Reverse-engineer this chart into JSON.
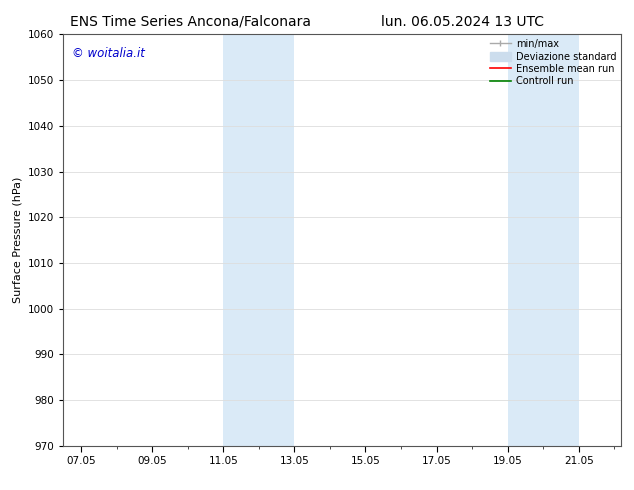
{
  "title_left": "ENS Time Series Ancona/Falconara",
  "title_right": "lun. 06.05.2024 13 UTC",
  "ylabel": "Surface Pressure (hPa)",
  "ylim": [
    970,
    1060
  ],
  "yticks": [
    970,
    980,
    990,
    1000,
    1010,
    1020,
    1030,
    1040,
    1050,
    1060
  ],
  "xlim_start": 6.5,
  "xlim_end": 22.2,
  "xtick_labels": [
    "07.05",
    "09.05",
    "11.05",
    "13.05",
    "15.05",
    "17.05",
    "19.05",
    "21.05"
  ],
  "xtick_positions": [
    7,
    9,
    11,
    13,
    15,
    17,
    19,
    21
  ],
  "shaded_bands": [
    {
      "x_start": 11.0,
      "x_end": 13.0
    },
    {
      "x_start": 19.0,
      "x_end": 21.0
    }
  ],
  "shaded_color": "#daeaf7",
  "copyright_text": "© woitalia.it",
  "copyright_color": "#0000cc",
  "legend_entries": [
    {
      "label": "min/max",
      "color": "#aaaaaa",
      "linestyle": "-",
      "linewidth": 1.0
    },
    {
      "label": "Deviazione standard",
      "color": "#ccdded",
      "linestyle": "-",
      "linewidth": 6
    },
    {
      "label": "Ensemble mean run",
      "color": "#ff0000",
      "linestyle": "-",
      "linewidth": 1.2
    },
    {
      "label": "Controll run",
      "color": "#008000",
      "linestyle": "-",
      "linewidth": 1.2
    }
  ],
  "background_color": "#ffffff",
  "grid_color": "#dddddd",
  "title_fontsize": 10,
  "axis_label_fontsize": 8,
  "tick_fontsize": 7.5,
  "copyright_fontsize": 8.5,
  "legend_fontsize": 7.0
}
